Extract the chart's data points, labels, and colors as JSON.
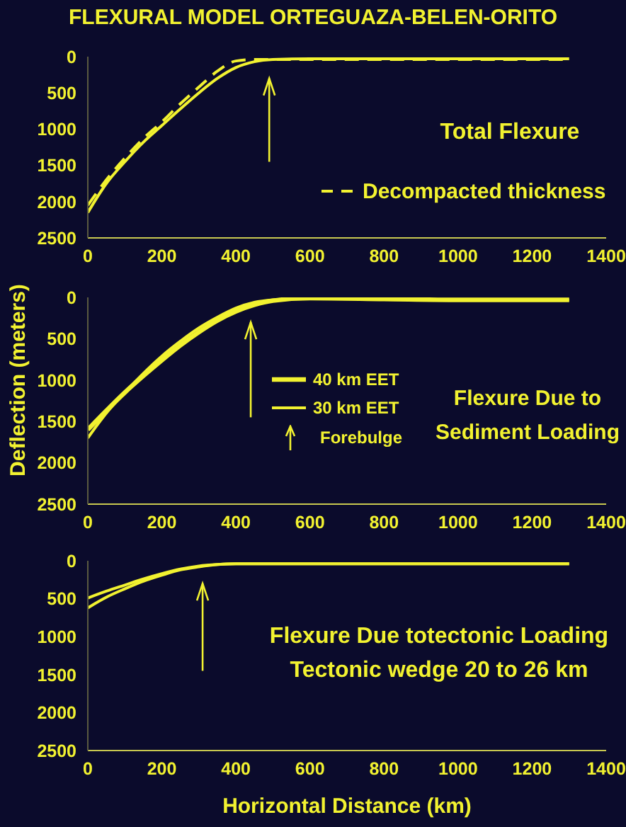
{
  "chart_data": [
    {
      "type": "line",
      "title": "FLEXURAL MODEL ORTEGUAZA-BELEN-ORITO",
      "x": [
        0,
        50,
        100,
        150,
        200,
        250,
        300,
        350,
        400,
        450,
        500,
        600,
        800,
        1000,
        1300
      ],
      "series": [
        {
          "color": "#f2f230",
          "values": [
            2150,
            1750,
            1450,
            1180,
            950,
            720,
            500,
            300,
            150,
            70,
            40,
            30,
            30,
            30,
            30
          ]
        },
        {
          "name": "Decompacted thickness",
          "color": "#f2f230",
          "line_style": "dashed",
          "values": [
            2050,
            1700,
            1400,
            1130,
            900,
            650,
            420,
            200,
            60,
            40,
            40,
            40,
            40,
            40,
            40
          ]
        }
      ],
      "xlim": [
        0,
        1400
      ],
      "xticks": [
        0,
        200,
        400,
        600,
        800,
        1000,
        1200,
        1400
      ],
      "ylim": [
        2500,
        0
      ],
      "yticks": [
        0,
        500,
        1000,
        1500,
        2000,
        2500
      ],
      "ref_lines": [
        {
          "axis": "x",
          "value": 490
        }
      ],
      "annotations": [
        "Total Flexure"
      ],
      "legend": "right"
    },
    {
      "type": "line",
      "ylabel": "Deflection (meters)",
      "x": [
        0,
        50,
        100,
        150,
        200,
        250,
        300,
        350,
        400,
        450,
        500,
        600,
        800,
        1000,
        1300
      ],
      "series": [
        {
          "name": "40 km EET",
          "color": "#f2f230",
          "values": [
            1600,
            1370,
            1150,
            950,
            760,
            580,
            420,
            280,
            170,
            90,
            40,
            10,
            20,
            30,
            30
          ]
        },
        {
          "name": "30 km EET",
          "color": "#f2f230",
          "values": [
            1700,
            1400,
            1150,
            920,
            710,
            530,
            370,
            240,
            130,
            60,
            30,
            10,
            20,
            30,
            30
          ]
        }
      ],
      "xlim": [
        0,
        1400
      ],
      "xticks": [
        0,
        200,
        400,
        600,
        800,
        1000,
        1200,
        1400
      ],
      "ylim": [
        2500,
        0
      ],
      "yticks": [
        0,
        500,
        1000,
        1500,
        2000,
        2500
      ],
      "ref_lines": [
        {
          "axis": "x",
          "value": 440,
          "label": "Forebulge"
        }
      ],
      "annotations": [
        "Flexure Due to Sediment Loading"
      ],
      "legend": "right"
    },
    {
      "type": "line",
      "xlabel": "Horizontal Distance (km)",
      "x": [
        0,
        50,
        100,
        150,
        200,
        250,
        300,
        350,
        400,
        500,
        600,
        800,
        1000,
        1300
      ],
      "series": [
        {
          "color": "#f2f230",
          "values": [
            490,
            400,
            320,
            240,
            170,
            110,
            70,
            50,
            40,
            40,
            40,
            40,
            40,
            40
          ]
        },
        {
          "color": "#f2f230",
          "values": [
            620,
            480,
            370,
            270,
            190,
            120,
            80,
            50,
            40,
            40,
            40,
            40,
            40,
            40
          ]
        }
      ],
      "xlim": [
        0,
        1400
      ],
      "xticks": [
        0,
        200,
        400,
        600,
        800,
        1000,
        1200,
        1400
      ],
      "ylim": [
        2500,
        0
      ],
      "yticks": [
        0,
        500,
        1000,
        1500,
        2000,
        2500
      ],
      "ref_lines": [
        {
          "axis": "x",
          "value": 310
        }
      ],
      "annotations": [
        "Flexure Due totectonic Loading Tectonic wedge 20 to 26 km"
      ]
    }
  ]
}
